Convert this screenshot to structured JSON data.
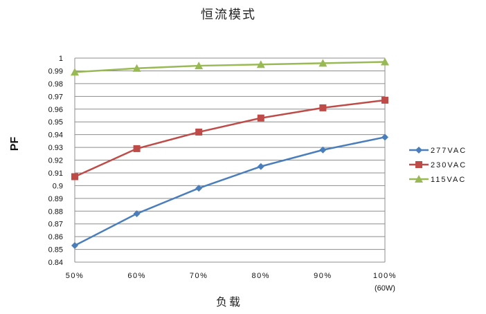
{
  "chart_data": {
    "type": "line",
    "title": "恒流模式",
    "xlabel": "负载",
    "ylabel": "PF",
    "categories": [
      "50%",
      "60%",
      "70%",
      "80%",
      "90%",
      "100%"
    ],
    "x_extra_label": "(60W)",
    "ylim": [
      0.84,
      1.0
    ],
    "yticks": [
      "0.84",
      "0.85",
      "0.86",
      "0.87",
      "0.88",
      "0.89",
      "0.9",
      "0.91",
      "0.92",
      "0.93",
      "0.94",
      "0.95",
      "0.96",
      "0.97",
      "0.98",
      "0.99",
      "1"
    ],
    "grid": true,
    "legend_position": "right",
    "series": [
      {
        "name": "277VAC",
        "color": "#4a7ebb",
        "marker": "diamond",
        "values": [
          0.853,
          0.878,
          0.898,
          0.915,
          0.928,
          0.938
        ]
      },
      {
        "name": "230VAC",
        "color": "#be4b48",
        "marker": "square",
        "values": [
          0.907,
          0.929,
          0.942,
          0.953,
          0.961,
          0.967
        ]
      },
      {
        "name": "115VAC",
        "color": "#98b954",
        "marker": "triangle",
        "values": [
          0.989,
          0.992,
          0.994,
          0.995,
          0.996,
          0.997
        ]
      }
    ]
  }
}
